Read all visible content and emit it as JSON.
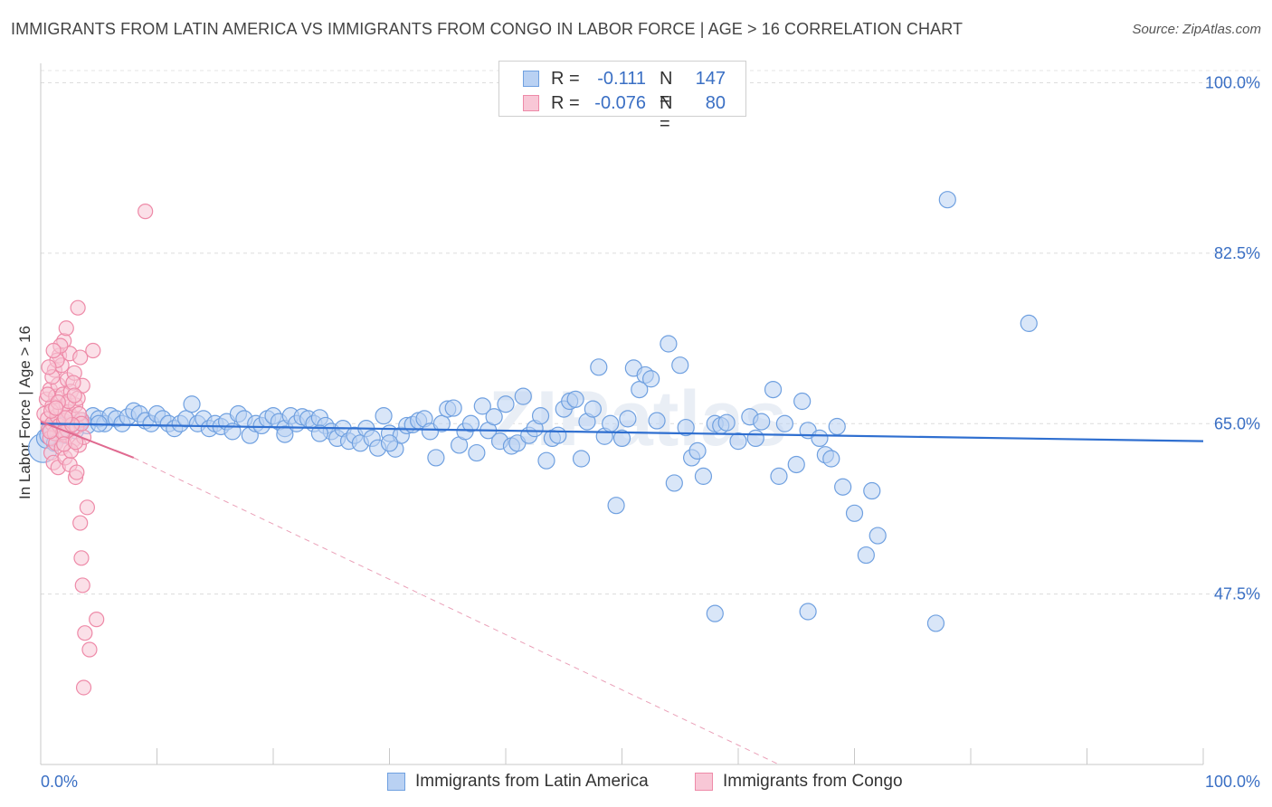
{
  "title": "IMMIGRANTS FROM LATIN AMERICA VS IMMIGRANTS FROM CONGO IN LABOR FORCE | AGE > 16 CORRELATION CHART",
  "source": "Source: ZipAtlas.com",
  "watermark": "ZIPatlas",
  "legend_stats": [
    {
      "r_label": "R =",
      "r_value": "-0.111",
      "n_label": "N =",
      "n_value": "147",
      "color": "#6fa0e0",
      "fill": "#b9d1f3"
    },
    {
      "r_label": "R =",
      "r_value": "-0.076",
      "n_label": "N =",
      "n_value": "80",
      "color": "#ee8aa8",
      "fill": "#f8c7d6"
    }
  ],
  "chart_data": {
    "type": "scatter",
    "title": "IMMIGRANTS FROM LATIN AMERICA VS IMMIGRANTS FROM CONGO IN LABOR FORCE | AGE > 16 CORRELATION CHART",
    "xlabel": "",
    "ylabel": "In Labor Force | Age > 16",
    "xlim": [
      0,
      100
    ],
    "ylim": [
      30,
      102
    ],
    "x_tick_labels": [
      "0.0%",
      "100.0%"
    ],
    "y_ticks": [
      100,
      82.5,
      65,
      47.5
    ],
    "y_tick_labels": [
      "100.0%",
      "82.5%",
      "65.0%",
      "47.5%"
    ],
    "grid": true,
    "legend_position": "bottom",
    "series": [
      {
        "name": "Immigrants from Latin America",
        "color": "#6fa0e0",
        "fill": "#b9d1f3",
        "points": [
          [
            0.2,
            62.5,
            16
          ],
          [
            0.5,
            63.5,
            11
          ],
          [
            0.7,
            63.8,
            10
          ],
          [
            1.0,
            64.5,
            10
          ],
          [
            1.2,
            63.0,
            9
          ],
          [
            1.5,
            64.0,
            9
          ],
          [
            1.8,
            64.8,
            9
          ],
          [
            2.0,
            63.8,
            9
          ],
          [
            2.3,
            64.5,
            9
          ],
          [
            2.7,
            65.0,
            9
          ],
          [
            3.0,
            64.3,
            9
          ],
          [
            3.5,
            65.3,
            9
          ],
          [
            4.0,
            64.8,
            9
          ],
          [
            4.5,
            65.8,
            9
          ],
          [
            5.0,
            65.5,
            9
          ],
          [
            5.5,
            65.0,
            9
          ],
          [
            6.0,
            65.8,
            9
          ],
          [
            6.5,
            65.5,
            9
          ],
          [
            7.0,
            65.0,
            9
          ],
          [
            7.5,
            65.7,
            9
          ],
          [
            8.0,
            66.3,
            9
          ],
          [
            8.5,
            66.0,
            9
          ],
          [
            9.0,
            65.3,
            9
          ],
          [
            9.5,
            65.0,
            9
          ],
          [
            10.0,
            66.0,
            9
          ],
          [
            10.5,
            65.5,
            9
          ],
          [
            11.0,
            65.0,
            9
          ],
          [
            11.5,
            64.5,
            9
          ],
          [
            12.0,
            65.0,
            9
          ],
          [
            12.5,
            65.5,
            9
          ],
          [
            13.0,
            67.0,
            9
          ],
          [
            13.5,
            65.0,
            9
          ],
          [
            14.0,
            65.5,
            9
          ],
          [
            14.5,
            64.5,
            9
          ],
          [
            15.0,
            65.0,
            9
          ],
          [
            15.5,
            64.7,
            9
          ],
          [
            16.0,
            65.2,
            9
          ],
          [
            16.5,
            64.2,
            9
          ],
          [
            17.0,
            66.0,
            9
          ],
          [
            17.5,
            65.5,
            9
          ],
          [
            18.0,
            63.8,
            9
          ],
          [
            18.5,
            65.0,
            9
          ],
          [
            19.0,
            64.8,
            9
          ],
          [
            19.5,
            65.5,
            9
          ],
          [
            20.0,
            65.8,
            9
          ],
          [
            20.5,
            65.2,
            9
          ],
          [
            21.0,
            64.5,
            9
          ],
          [
            21.5,
            65.8,
            9
          ],
          [
            22.0,
            65.0,
            9
          ],
          [
            22.5,
            65.7,
            9
          ],
          [
            23.0,
            65.5,
            9
          ],
          [
            23.5,
            65.0,
            9
          ],
          [
            24.0,
            65.6,
            9
          ],
          [
            24.5,
            64.8,
            9
          ],
          [
            25.0,
            64.2,
            9
          ],
          [
            25.5,
            63.5,
            9
          ],
          [
            26.0,
            64.5,
            9
          ],
          [
            26.5,
            63.2,
            9
          ],
          [
            27.0,
            63.8,
            9
          ],
          [
            27.5,
            63.0,
            9
          ],
          [
            28.0,
            64.5,
            9
          ],
          [
            28.5,
            63.5,
            9
          ],
          [
            29.0,
            62.5,
            9
          ],
          [
            29.5,
            65.8,
            9
          ],
          [
            30.0,
            64.0,
            9
          ],
          [
            30.5,
            62.4,
            9
          ],
          [
            31.0,
            63.8,
            9
          ],
          [
            31.5,
            64.8,
            9
          ],
          [
            32.0,
            64.9,
            9
          ],
          [
            32.5,
            65.3,
            9
          ],
          [
            33.0,
            65.5,
            9
          ],
          [
            33.5,
            64.2,
            9
          ],
          [
            34.0,
            61.5,
            9
          ],
          [
            34.5,
            65.0,
            9
          ],
          [
            35.0,
            66.5,
            9
          ],
          [
            35.5,
            66.6,
            9
          ],
          [
            36.0,
            62.8,
            9
          ],
          [
            36.5,
            64.2,
            9
          ],
          [
            37.0,
            65.0,
            9
          ],
          [
            37.5,
            62.0,
            9
          ],
          [
            38.0,
            66.8,
            9
          ],
          [
            38.5,
            64.3,
            9
          ],
          [
            39.0,
            65.7,
            9
          ],
          [
            39.5,
            63.2,
            9
          ],
          [
            40.0,
            67.0,
            9
          ],
          [
            40.5,
            62.7,
            9
          ],
          [
            41.0,
            63.0,
            9
          ],
          [
            41.5,
            67.8,
            9
          ],
          [
            42.0,
            63.8,
            9
          ],
          [
            42.5,
            64.5,
            9
          ],
          [
            43.0,
            65.8,
            9
          ],
          [
            43.5,
            61.2,
            9
          ],
          [
            44.0,
            63.5,
            9
          ],
          [
            44.5,
            63.8,
            9
          ],
          [
            45.0,
            66.5,
            9
          ],
          [
            45.5,
            67.3,
            9
          ],
          [
            46.0,
            67.5,
            9
          ],
          [
            46.5,
            61.4,
            9
          ],
          [
            47.0,
            65.2,
            9
          ],
          [
            47.5,
            66.5,
            9
          ],
          [
            48.0,
            70.8,
            9
          ],
          [
            48.5,
            63.7,
            9
          ],
          [
            49.0,
            65.0,
            9
          ],
          [
            49.5,
            56.6,
            9
          ],
          [
            50.0,
            63.5,
            9
          ],
          [
            50.5,
            65.5,
            9
          ],
          [
            51.0,
            70.7,
            9
          ],
          [
            51.5,
            68.5,
            9
          ],
          [
            52.0,
            70.0,
            9
          ],
          [
            52.5,
            69.6,
            9
          ],
          [
            53.0,
            65.3,
            9
          ],
          [
            54.0,
            73.2,
            9
          ],
          [
            54.5,
            58.9,
            9
          ],
          [
            55.0,
            71.0,
            9
          ],
          [
            55.5,
            64.6,
            9
          ],
          [
            56.0,
            61.5,
            9
          ],
          [
            56.5,
            62.2,
            9
          ],
          [
            57.0,
            59.6,
            9
          ],
          [
            58.0,
            65.0,
            9
          ],
          [
            58.5,
            64.8,
            9
          ],
          [
            59.0,
            65.1,
            9
          ],
          [
            60.0,
            63.2,
            9
          ],
          [
            61.0,
            65.7,
            9
          ],
          [
            61.5,
            63.5,
            9
          ],
          [
            62.0,
            65.2,
            9
          ],
          [
            63.0,
            68.5,
            9
          ],
          [
            63.5,
            59.6,
            9
          ],
          [
            64.0,
            65.0,
            9
          ],
          [
            65.0,
            60.8,
            9
          ],
          [
            65.5,
            67.3,
            9
          ],
          [
            66.0,
            64.3,
            9
          ],
          [
            67.0,
            63.5,
            9
          ],
          [
            67.5,
            61.8,
            9
          ],
          [
            68.0,
            61.4,
            9
          ],
          [
            68.5,
            64.7,
            9
          ],
          [
            69.0,
            58.5,
            9
          ],
          [
            70.0,
            55.8,
            9
          ],
          [
            71.0,
            51.5,
            9
          ],
          [
            71.5,
            58.1,
            9
          ],
          [
            72.0,
            53.5,
            9
          ],
          [
            78.0,
            88.0,
            9
          ],
          [
            85.0,
            75.3,
            9
          ],
          [
            58.0,
            45.5,
            9
          ],
          [
            66.0,
            45.7,
            9
          ],
          [
            77.0,
            44.5,
            9
          ],
          [
            30.0,
            63.0,
            9
          ],
          [
            24.0,
            64.0,
            9
          ],
          [
            21.0,
            63.9,
            9
          ],
          [
            5.0,
            65.0,
            9
          ]
        ],
        "trend": {
          "x": [
            0,
            100
          ],
          "y": [
            65.0,
            63.2
          ]
        }
      },
      {
        "name": "Immigrants from Congo",
        "color": "#ee8aa8",
        "fill": "#f8c7d6",
        "points": [
          [
            0.3,
            66.0,
            8
          ],
          [
            0.5,
            67.5,
            8
          ],
          [
            0.6,
            65.5,
            8
          ],
          [
            0.7,
            64.5,
            8
          ],
          [
            0.8,
            63.5,
            8
          ],
          [
            0.8,
            68.5,
            8
          ],
          [
            0.9,
            62.0,
            8
          ],
          [
            1.0,
            66.8,
            8
          ],
          [
            1.0,
            65.0,
            8
          ],
          [
            1.1,
            61.0,
            8
          ],
          [
            1.2,
            64.0,
            8
          ],
          [
            1.2,
            70.5,
            8
          ],
          [
            1.3,
            63.0,
            8
          ],
          [
            1.3,
            67.8,
            8
          ],
          [
            1.4,
            65.8,
            8
          ],
          [
            1.5,
            60.5,
            8
          ],
          [
            1.5,
            69.0,
            8
          ],
          [
            1.6,
            72.0,
            8
          ],
          [
            1.6,
            64.8,
            8
          ],
          [
            1.7,
            66.5,
            8
          ],
          [
            1.8,
            62.5,
            8
          ],
          [
            1.8,
            71.0,
            8
          ],
          [
            1.9,
            68.0,
            8
          ],
          [
            2.0,
            65.3,
            8
          ],
          [
            2.0,
            73.5,
            8
          ],
          [
            2.1,
            63.8,
            8
          ],
          [
            2.1,
            61.5,
            8
          ],
          [
            2.2,
            67.0,
            8
          ],
          [
            2.3,
            69.5,
            8
          ],
          [
            2.3,
            64.3,
            8
          ],
          [
            2.4,
            66.2,
            8
          ],
          [
            2.5,
            72.2,
            8
          ],
          [
            2.5,
            60.8,
            8
          ],
          [
            2.6,
            68.3,
            8
          ],
          [
            2.7,
            65.7,
            8
          ],
          [
            2.8,
            63.3,
            8
          ],
          [
            2.9,
            70.2,
            8
          ],
          [
            3.0,
            66.9,
            8
          ],
          [
            3.0,
            59.5,
            8
          ],
          [
            3.1,
            64.7,
            8
          ],
          [
            3.2,
            67.6,
            8
          ],
          [
            3.3,
            62.8,
            8
          ],
          [
            3.4,
            71.8,
            8
          ],
          [
            3.5,
            65.4,
            8
          ],
          [
            3.6,
            68.9,
            8
          ],
          [
            3.7,
            63.6,
            8
          ],
          [
            1.0,
            69.8,
            8
          ],
          [
            1.4,
            71.5,
            8
          ],
          [
            2.2,
            74.8,
            8
          ],
          [
            1.7,
            73.0,
            8
          ],
          [
            0.6,
            68.0,
            8
          ],
          [
            0.9,
            66.3,
            8
          ],
          [
            2.6,
            62.2,
            8
          ],
          [
            3.1,
            60.0,
            8
          ],
          [
            1.9,
            64.1,
            8
          ],
          [
            2.4,
            67.3,
            8
          ],
          [
            3.3,
            66.0,
            8
          ],
          [
            0.7,
            70.8,
            8
          ],
          [
            1.1,
            72.5,
            8
          ],
          [
            2.8,
            69.2,
            8
          ],
          [
            3.2,
            76.9,
            8
          ],
          [
            3.5,
            65.0,
            8
          ],
          [
            1.5,
            67.2,
            8
          ],
          [
            2.0,
            62.9,
            8
          ],
          [
            2.7,
            64.9,
            8
          ],
          [
            3.0,
            63.1,
            8
          ],
          [
            3.4,
            54.8,
            8
          ],
          [
            3.5,
            51.2,
            8
          ],
          [
            3.6,
            48.4,
            8
          ],
          [
            4.0,
            56.4,
            8
          ],
          [
            4.5,
            72.5,
            8
          ],
          [
            4.2,
            41.8,
            8
          ],
          [
            3.8,
            43.5,
            8
          ],
          [
            4.8,
            44.9,
            8
          ],
          [
            3.7,
            37.9,
            8
          ],
          [
            9.0,
            86.8,
            8
          ],
          [
            2.1,
            65.6,
            8
          ],
          [
            1.3,
            66.6,
            8
          ],
          [
            0.8,
            64.2,
            8
          ],
          [
            2.9,
            67.9,
            8
          ]
        ],
        "trend_solid": {
          "x": [
            0,
            8
          ],
          "y": [
            65.2,
            61.5
          ]
        },
        "trend_dashed": {
          "x": [
            8,
            63.5
          ],
          "y": [
            61.5,
            30.0
          ]
        }
      }
    ]
  }
}
